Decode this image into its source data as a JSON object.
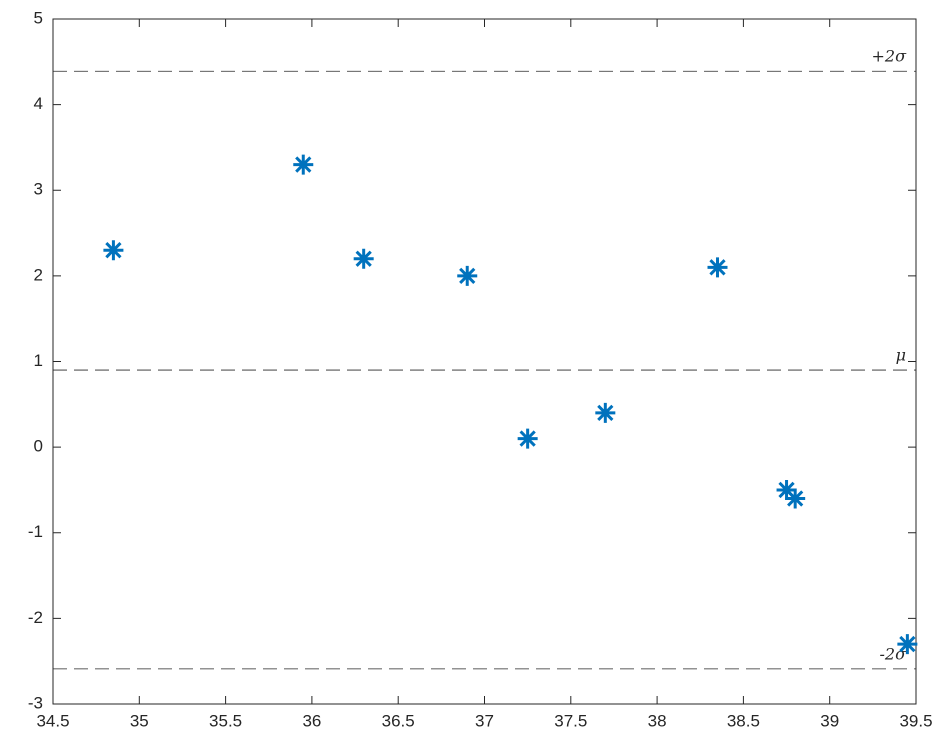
{
  "chart_data": {
    "type": "scatter",
    "x": [
      34.85,
      35.95,
      36.3,
      36.9,
      37.25,
      37.7,
      38.35,
      38.75,
      38.8,
      39.45
    ],
    "values": [
      2.3,
      3.3,
      2.2,
      2.0,
      0.1,
      0.4,
      2.1,
      -0.5,
      -0.6,
      -2.3
    ],
    "color": "#0072BD",
    "marker": "asterisk",
    "xlim": [
      34.5,
      39.5
    ],
    "xticks": [
      34.5,
      35,
      35.5,
      36,
      36.5,
      37,
      37.5,
      38,
      38.5,
      39,
      39.5
    ],
    "ylim": [
      -3,
      5
    ],
    "yticks": [
      -3,
      -2,
      -1,
      0,
      1,
      2,
      3,
      4,
      5
    ],
    "reference_lines": [
      {
        "value": 4.39,
        "label": "+2σ"
      },
      {
        "value": 0.9,
        "label": "μ"
      },
      {
        "value": -2.59,
        "label": "-2σ"
      }
    ]
  }
}
